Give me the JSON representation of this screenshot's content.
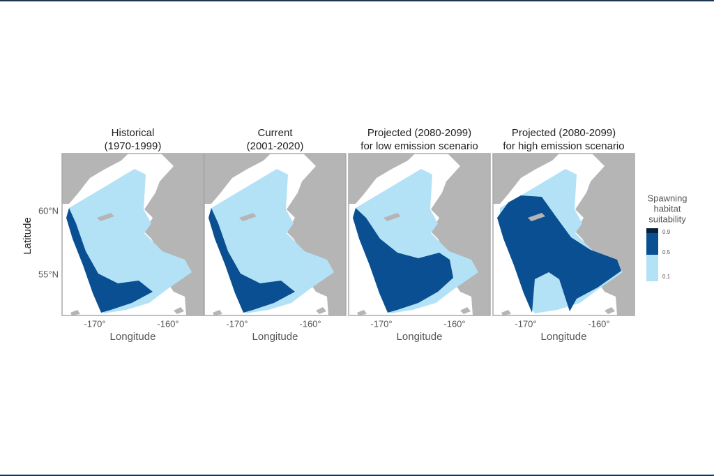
{
  "panels": [
    {
      "title": [
        "Historical",
        "(1970-1999)"
      ]
    },
    {
      "title": [
        "Current",
        "(2001-2020)"
      ]
    },
    {
      "title": [
        "Projected (2080-2099)",
        "for low emission scenario"
      ]
    },
    {
      "title": [
        "Projected (2080-2099)",
        "for high emission scenario"
      ]
    }
  ],
  "x_axis": {
    "title": "Longitude",
    "ticks": [
      "-170°",
      "-160°"
    ]
  },
  "y_axis": {
    "title": "Latitude",
    "ticks": [
      "60°N",
      "55°N"
    ]
  },
  "legend": {
    "title": [
      "Spawning",
      "habitat",
      "suitability"
    ],
    "breaks": [
      0.9,
      0.5,
      0.1
    ]
  }
}
